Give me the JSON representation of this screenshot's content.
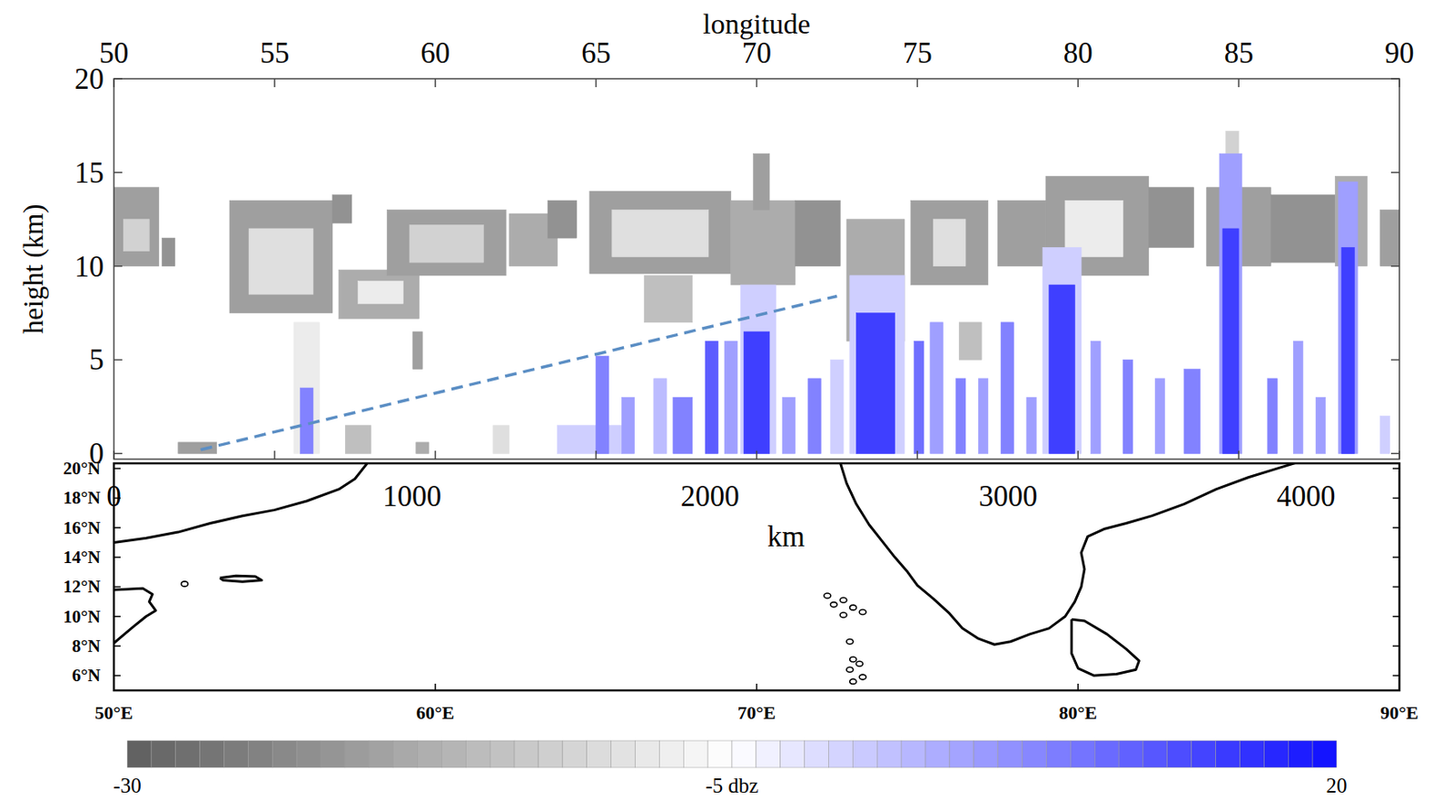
{
  "chart_data": [
    {
      "type": "cross_section",
      "x_label": "longitude",
      "y_label": "height (km)",
      "x2label": "km",
      "xlim": [
        50,
        90
      ],
      "xticks": [
        50,
        55,
        60,
        65,
        70,
        75,
        80,
        85,
        90
      ],
      "ylim": [
        -0.3,
        20
      ],
      "yticks": [
        0,
        5,
        10,
        15,
        20
      ],
      "x2lim": [
        0,
        4313
      ],
      "x2ticks": [
        0,
        1000,
        2000,
        3000,
        4000
      ],
      "colorbar": {
        "range": [
          -30,
          20
        ],
        "ticks": [
          -30,
          {
            "value": -5,
            "label": "-5 dbz"
          },
          20
        ]
      },
      "cells": [
        [
          50.0,
          51.4,
          10.0,
          14.2,
          -20
        ],
        [
          50.3,
          51.1,
          10.8,
          12.5,
          -12
        ],
        [
          51.5,
          51.9,
          10.0,
          11.5,
          -22
        ],
        [
          53.6,
          56.8,
          7.5,
          13.5,
          -20
        ],
        [
          54.2,
          56.2,
          8.5,
          12.0,
          -10
        ],
        [
          56.8,
          57.4,
          12.3,
          13.8,
          -22
        ],
        [
          57.0,
          59.5,
          7.2,
          9.8,
          -18
        ],
        [
          57.6,
          59.0,
          8.0,
          9.2,
          -8
        ],
        [
          58.5,
          62.2,
          9.5,
          13.0,
          -20
        ],
        [
          59.2,
          61.5,
          10.2,
          12.2,
          -12
        ],
        [
          62.3,
          63.8,
          10.0,
          12.8,
          -18
        ],
        [
          63.5,
          64.4,
          11.5,
          13.5,
          -22
        ],
        [
          64.8,
          69.2,
          9.6,
          14.0,
          -20
        ],
        [
          65.5,
          68.5,
          10.5,
          13.0,
          -10
        ],
        [
          69.2,
          71.2,
          9.0,
          13.5,
          -18
        ],
        [
          69.9,
          70.4,
          13.0,
          16.0,
          -20
        ],
        [
          71.2,
          72.6,
          10.0,
          13.5,
          -22
        ],
        [
          72.8,
          74.6,
          6.0,
          12.5,
          -18
        ],
        [
          74.8,
          77.2,
          9.0,
          13.5,
          -20
        ],
        [
          75.5,
          76.5,
          10.0,
          12.5,
          -10
        ],
        [
          77.5,
          79.0,
          10.0,
          13.5,
          -20
        ],
        [
          79.0,
          82.2,
          9.5,
          14.8,
          -20
        ],
        [
          79.6,
          81.4,
          10.5,
          13.5,
          -8
        ],
        [
          82.2,
          83.6,
          11.0,
          14.2,
          -22
        ],
        [
          84.0,
          86.0,
          10.0,
          14.2,
          -20
        ],
        [
          84.6,
          85.0,
          14.0,
          17.2,
          -12
        ],
        [
          86.0,
          88.0,
          10.2,
          13.8,
          -22
        ],
        [
          88.0,
          89.0,
          10.0,
          14.8,
          -18
        ],
        [
          89.4,
          90.0,
          10.0,
          13.0,
          -20
        ],
        [
          59.3,
          59.6,
          4.5,
          6.5,
          -20
        ],
        [
          66.5,
          68.0,
          7.0,
          9.5,
          -15
        ],
        [
          76.3,
          77.0,
          5.0,
          7.0,
          -15
        ],
        [
          55.6,
          56.4,
          0.0,
          7.0,
          -8
        ],
        [
          55.8,
          56.2,
          0.0,
          3.5,
          8
        ],
        [
          52.0,
          53.2,
          0.0,
          0.6,
          -20
        ],
        [
          57.2,
          58.0,
          0.0,
          1.5,
          -15
        ],
        [
          59.4,
          59.8,
          0.0,
          0.6,
          -18
        ],
        [
          61.8,
          62.3,
          0.0,
          1.5,
          -10
        ],
        [
          62.8,
          63.3,
          0.0,
          2.0,
          -5
        ],
        [
          63.8,
          65.8,
          0.0,
          1.5,
          0
        ],
        [
          65.0,
          65.4,
          0.0,
          5.2,
          8
        ],
        [
          65.8,
          66.2,
          0.0,
          3.0,
          5
        ],
        [
          66.8,
          67.2,
          0.0,
          4.0,
          2
        ],
        [
          67.4,
          68.0,
          0.0,
          3.0,
          8
        ],
        [
          68.4,
          68.8,
          0.0,
          6.0,
          12
        ],
        [
          69.0,
          69.4,
          0.0,
          6.0,
          5
        ],
        [
          69.5,
          70.6,
          0.0,
          9.0,
          0
        ],
        [
          69.6,
          70.4,
          0.0,
          6.5,
          15
        ],
        [
          70.8,
          71.2,
          0.0,
          3.0,
          5
        ],
        [
          71.6,
          72.0,
          0.0,
          4.0,
          8
        ],
        [
          72.3,
          72.7,
          0.0,
          5.0,
          0
        ],
        [
          72.9,
          74.6,
          0.0,
          9.5,
          0
        ],
        [
          73.1,
          74.3,
          0.0,
          7.5,
          15
        ],
        [
          74.9,
          75.2,
          0.0,
          6.0,
          10
        ],
        [
          75.4,
          75.8,
          0.0,
          7.0,
          5
        ],
        [
          76.2,
          76.5,
          0.0,
          4.0,
          8
        ],
        [
          76.9,
          77.2,
          0.0,
          4.0,
          5
        ],
        [
          77.6,
          78.0,
          0.0,
          7.0,
          8
        ],
        [
          78.4,
          78.7,
          0.0,
          3.0,
          5
        ],
        [
          78.9,
          80.1,
          0.0,
          11.0,
          0
        ],
        [
          79.1,
          79.9,
          0.0,
          9.0,
          15
        ],
        [
          80.4,
          80.7,
          0.0,
          6.0,
          5
        ],
        [
          81.4,
          81.7,
          0.0,
          5.0,
          8
        ],
        [
          82.4,
          82.7,
          0.0,
          4.0,
          5
        ],
        [
          83.3,
          83.8,
          0.0,
          4.5,
          8
        ],
        [
          84.4,
          85.1,
          0.0,
          16.0,
          5
        ],
        [
          84.5,
          85.0,
          0.0,
          12.0,
          15
        ],
        [
          85.9,
          86.2,
          0.0,
          4.0,
          8
        ],
        [
          86.7,
          87.0,
          0.0,
          6.0,
          5
        ],
        [
          87.4,
          87.7,
          0.0,
          3.0,
          5
        ],
        [
          88.1,
          88.7,
          0.0,
          14.5,
          5
        ],
        [
          88.2,
          88.6,
          0.0,
          11.0,
          15
        ],
        [
          89.4,
          89.7,
          0.0,
          2.0,
          0
        ]
      ],
      "series": [
        {
          "type": "line",
          "x": [
            52.7,
            72.5
          ],
          "values": [
            0.2,
            8.4
          ],
          "color": "#5b8ec4",
          "line_style": "dashed"
        }
      ]
    },
    {
      "type": "map",
      "xlim": [
        50,
        90
      ],
      "xticks": [
        {
          "value": 50,
          "label": "50°E"
        },
        {
          "value": 60,
          "label": "60°E"
        },
        {
          "value": 70,
          "label": "70°E"
        },
        {
          "value": 80,
          "label": "80°E"
        },
        {
          "value": 90,
          "label": "90°E"
        }
      ],
      "ylim": [
        5,
        20.35
      ],
      "yticks": [
        {
          "value": 6,
          "label": "6°N"
        },
        {
          "value": 8,
          "label": "8°N"
        },
        {
          "value": 10,
          "label": "10°N"
        },
        {
          "value": 12,
          "label": "12°N"
        },
        {
          "value": 14,
          "label": "14°N"
        },
        {
          "value": 16,
          "label": "16°N"
        },
        {
          "value": 18,
          "label": "18°N"
        },
        {
          "value": 20,
          "label": "20°N"
        }
      ],
      "coastlines": [
        {
          "x": [
            50,
            51,
            52,
            53,
            54,
            55,
            56,
            57,
            57.5,
            57.9
          ],
          "y": [
            15.0,
            15.3,
            15.7,
            16.3,
            16.8,
            17.2,
            17.8,
            18.6,
            19.3,
            20.4
          ]
        },
        {
          "x": [
            50,
            50.9,
            51.2,
            51.1,
            51.3,
            51.0,
            50.6,
            50.0
          ],
          "y": [
            11.8,
            11.9,
            11.5,
            11.0,
            10.4,
            10.0,
            9.3,
            8.2
          ]
        },
        {
          "x": [
            53.3,
            53.8,
            54.4,
            54.6,
            54.0,
            53.4,
            53.3
          ],
          "y": [
            12.6,
            12.75,
            12.7,
            12.45,
            12.35,
            12.45,
            12.6
          ]
        },
        {
          "x": [
            72.6,
            72.8,
            73.1,
            73.5,
            73.9,
            74.3,
            74.7,
            75.0,
            75.5,
            76.0,
            76.4,
            76.9,
            77.4,
            77.9,
            78.5,
            79.1,
            79.6,
            79.9,
            80.1,
            80.2,
            80.1,
            80.3,
            80.8,
            81.5,
            82.3,
            83.3,
            84.3,
            85.3,
            86.2,
            86.8
          ],
          "y": [
            20.4,
            19.0,
            17.6,
            16.2,
            15.1,
            14.0,
            13.0,
            12.1,
            11.2,
            10.2,
            9.2,
            8.5,
            8.1,
            8.3,
            8.8,
            9.2,
            10.0,
            11.0,
            12.0,
            13.2,
            14.3,
            15.4,
            15.9,
            16.3,
            16.8,
            17.6,
            18.6,
            19.4,
            20.0,
            20.4
          ]
        },
        {
          "x": [
            79.8,
            80.2,
            80.9,
            81.5,
            81.9,
            81.8,
            81.2,
            80.5,
            80.0,
            79.8,
            79.8
          ],
          "y": [
            9.8,
            9.7,
            8.8,
            7.8,
            7.0,
            6.4,
            6.1,
            6.0,
            6.5,
            7.5,
            9.8
          ]
        }
      ],
      "islands": [
        [
          52.2,
          12.2
        ],
        [
          72.2,
          11.4
        ],
        [
          72.7,
          11.1
        ],
        [
          72.4,
          10.8
        ],
        [
          73.0,
          10.6
        ],
        [
          72.7,
          10.1
        ],
        [
          73.3,
          10.3
        ],
        [
          72.9,
          8.3
        ],
        [
          73.0,
          7.1
        ],
        [
          73.2,
          6.8
        ],
        [
          72.9,
          6.4
        ],
        [
          73.3,
          5.9
        ],
        [
          73.0,
          5.6
        ]
      ]
    }
  ]
}
